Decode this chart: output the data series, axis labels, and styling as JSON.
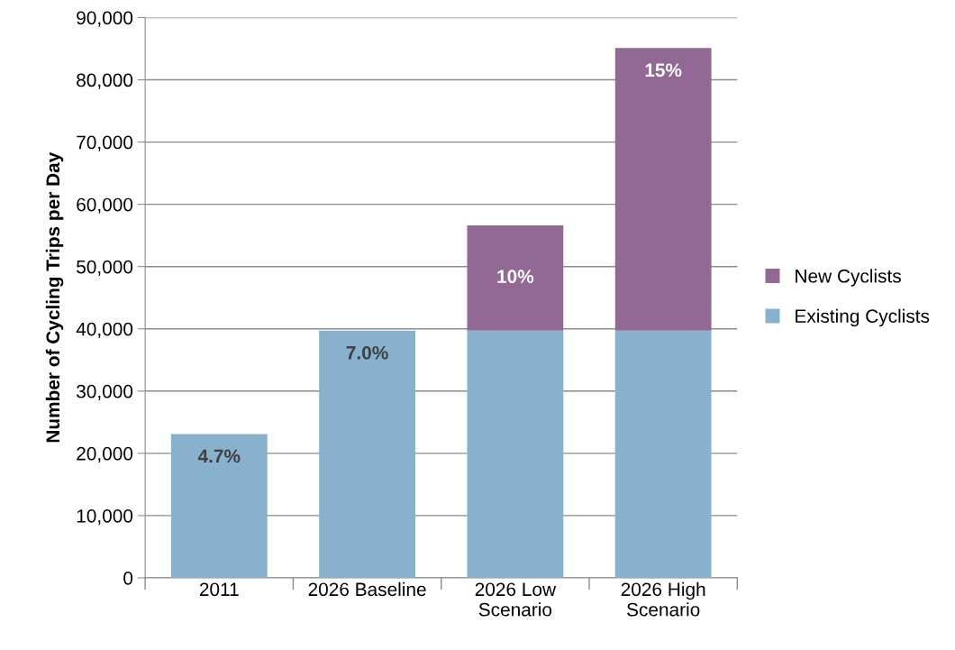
{
  "chart_data": {
    "type": "bar",
    "stacked": true,
    "ylabel": "Number of Cycling Trips per Day",
    "categories": [
      "2011",
      "2026 Baseline",
      "2026 Low\nScenario",
      "2026 High\nScenario"
    ],
    "series": [
      {
        "name": "Existing Cyclists",
        "color": "#87b1cc",
        "values": [
          23100,
          39700,
          39700,
          39700
        ]
      },
      {
        "name": "New Cyclists",
        "color": "#926895",
        "values": [
          null,
          null,
          16900,
          45400
        ]
      }
    ],
    "annotations": [
      "4.7%",
      "7.0%",
      "10%",
      "15%"
    ],
    "ylim": [
      0,
      90000
    ],
    "yticks": [
      {
        "value": 0,
        "label": "0"
      },
      {
        "value": 10000,
        "label": "10,000"
      },
      {
        "value": 20000,
        "label": "20,000"
      },
      {
        "value": 30000,
        "label": "30,000"
      },
      {
        "value": 40000,
        "label": "40,000"
      },
      {
        "value": 50000,
        "label": "50,000"
      },
      {
        "value": 60000,
        "label": "60,000"
      },
      {
        "value": 70000,
        "label": "70,000"
      },
      {
        "value": 80000,
        "label": "80,000"
      },
      {
        "value": 90000,
        "label": "90,000"
      }
    ],
    "grid": "y",
    "legend": "right"
  }
}
